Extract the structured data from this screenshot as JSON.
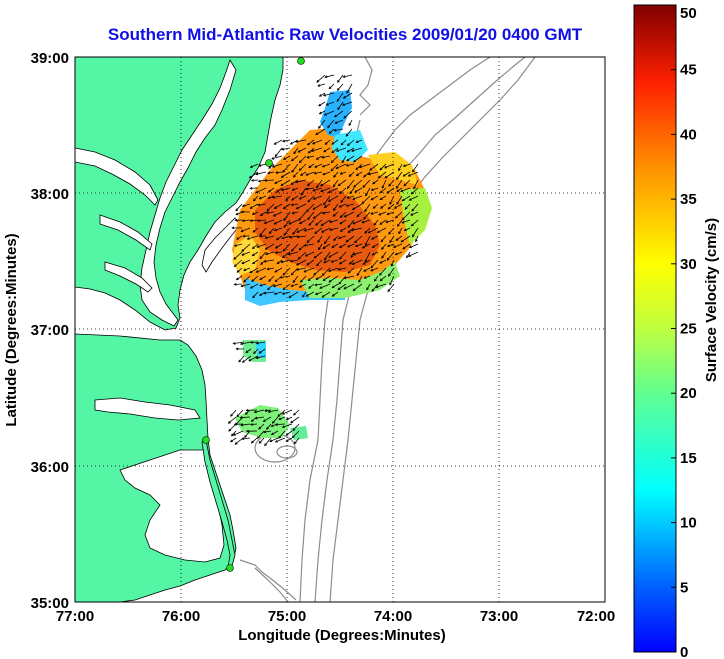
{
  "title": "Southern Mid-Atlantic Raw Velocities 2009/01/20 0400 GMT",
  "map": {
    "xlabel": "Longitude (Degrees:Minutes)",
    "ylabel": "Latitude (Degrees:Minutes)",
    "lon_ticks": [
      "77:00",
      "76:00",
      "75:00",
      "74:00",
      "73:00",
      "72:00"
    ],
    "lat_ticks": [
      "39:00",
      "38:00",
      "37:00",
      "36:00",
      "35:00"
    ],
    "lon_range": [
      -77,
      -72
    ],
    "lat_range": [
      35,
      39
    ],
    "land_color": "#55f5a6",
    "bathymetry_color": "#8c8c8c",
    "grid": "dotted"
  },
  "colorbar": {
    "label": "Surface Velocity (cm/s)",
    "ticks": [
      "0",
      "5",
      "10",
      "15",
      "20",
      "25",
      "30",
      "35",
      "40",
      "45",
      "50"
    ],
    "min": 0,
    "max": 50,
    "colormap": "jet"
  }
}
